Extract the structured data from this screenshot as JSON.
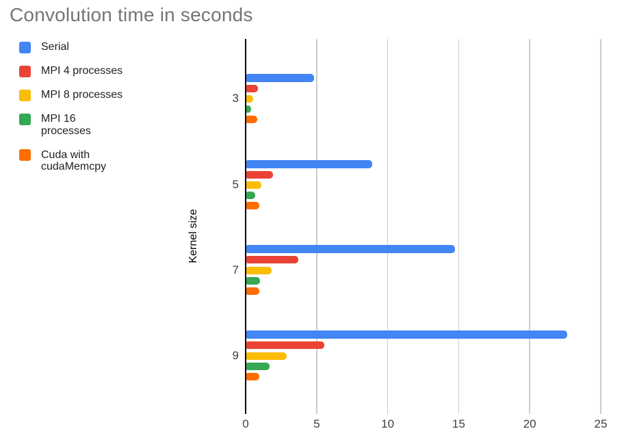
{
  "title": "Convolution time in seconds",
  "chart_data": {
    "type": "bar",
    "orientation": "horizontal",
    "title": "Convolution time in seconds",
    "xlabel": "",
    "ylabel": "Kernel size",
    "categories": [
      "3",
      "5",
      "7",
      "9"
    ],
    "series": [
      {
        "name": "Serial",
        "color": "#4285F4",
        "values": [
          4.8,
          8.9,
          14.7,
          22.6
        ]
      },
      {
        "name": "MPI 4 processes",
        "color": "#EA4335",
        "values": [
          0.85,
          1.9,
          3.7,
          5.5
        ]
      },
      {
        "name": "MPI 8 processes",
        "color": "#FBBC04",
        "values": [
          0.5,
          1.1,
          1.8,
          2.85
        ]
      },
      {
        "name": "MPI 16 processes",
        "color": "#34A853",
        "values": [
          0.35,
          0.65,
          1.0,
          1.65
        ]
      },
      {
        "name": "Cuda with cudaMemcpy",
        "color": "#FF6D01",
        "values": [
          0.8,
          0.95,
          0.95,
          0.95
        ]
      }
    ],
    "x_axis": {
      "min": 0,
      "max": 25.6,
      "ticks": [
        0,
        5,
        10,
        15,
        20,
        25
      ],
      "tick_labels": [
        "0",
        "5",
        "10",
        "15",
        "20",
        "25"
      ]
    },
    "grid": true,
    "legend_position": "top-left",
    "background": "#ffffff"
  },
  "styles": {
    "title_color": "#757575",
    "axis_text_color": "#3c4043",
    "legend_text_color": "#212121",
    "gridline_color": "#cccccc",
    "axis_line_color": "#000000"
  }
}
